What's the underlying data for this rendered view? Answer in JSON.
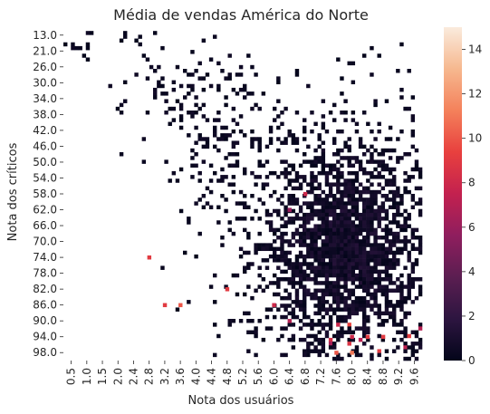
{
  "chart_data": {
    "type": "heatmap",
    "title": "Média de vendas América do Norte",
    "xlabel": "Nota dos usuários",
    "ylabel": "Nota dos críticos",
    "x_tick_labels": [
      "0.5",
      "1.0",
      "1.5",
      "2.0",
      "2.4",
      "2.8",
      "3.2",
      "3.6",
      "4.0",
      "4.4",
      "4.8",
      "5.2",
      "5.6",
      "6.0",
      "6.4",
      "6.8",
      "7.2",
      "7.6",
      "8.0",
      "8.4",
      "8.8",
      "9.2",
      "9.6"
    ],
    "y_tick_labels": [
      "13.0",
      "21.0",
      "26.0",
      "30.0",
      "34.0",
      "38.0",
      "42.0",
      "46.0",
      "50.0",
      "54.0",
      "58.0",
      "62.0",
      "66.0",
      "70.0",
      "74.0",
      "78.0",
      "82.0",
      "86.0",
      "90.0",
      "94.0",
      "98.0"
    ],
    "colorbar": {
      "range": [
        0,
        15
      ],
      "ticks": [
        "0",
        "2",
        "4",
        "6",
        "8",
        "10",
        "12",
        "14"
      ],
      "colormap": "rocket",
      "colors": [
        "#03051a",
        "#2d1540",
        "#5b1e51",
        "#8f1e5e",
        "#c3214f",
        "#e8403e",
        "#f4815b",
        "#f6b88f",
        "#faebdd"
      ]
    },
    "description_values_note": "",
    "hotspots": [
      {
        "x": "7.6",
        "y": "98.0",
        "value": 10
      },
      {
        "x": "8.0",
        "y": "98.0",
        "value": 11
      },
      {
        "x": "8.4",
        "y": "94.0",
        "value": 9
      },
      {
        "x": "8.8",
        "y": "94.0",
        "value": 9
      },
      {
        "x": "8.0",
        "y": "94.0",
        "value": 8
      },
      {
        "x": "3.2",
        "y": "86.0",
        "value": 9
      },
      {
        "x": "3.6",
        "y": "86.0",
        "value": 10
      },
      {
        "x": "2.8",
        "y": "74.0",
        "value": 9
      },
      {
        "x": "4.8",
        "y": "82.0",
        "value": 9
      },
      {
        "x": "6.8",
        "y": "58.0",
        "value": 8
      },
      {
        "x": "6.4",
        "y": "62.0",
        "value": 6
      },
      {
        "x": "6.0",
        "y": "86.0",
        "value": 8
      },
      {
        "x": "6.4",
        "y": "90.0",
        "value": 7
      }
    ]
  }
}
